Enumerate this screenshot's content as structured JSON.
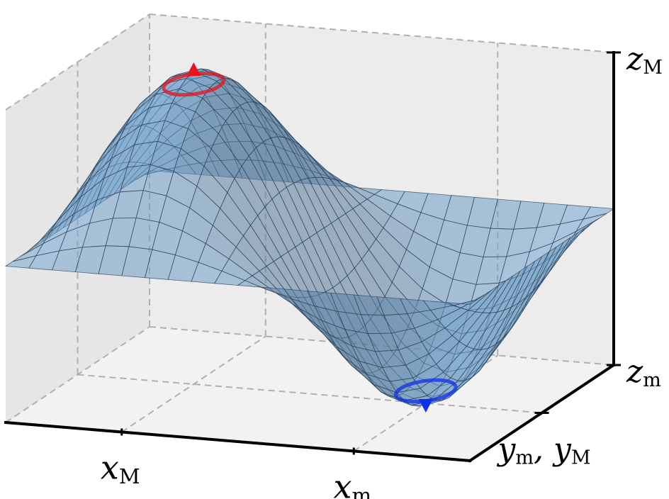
{
  "chart_data": {
    "type": "surface3d",
    "title": "",
    "xlabel": "",
    "ylabel": "",
    "zlabel": "",
    "x_ticks": [
      {
        "var": "x",
        "sub": "M",
        "value": 0.25
      },
      {
        "var": "x",
        "sub": "m",
        "value": 0.75
      }
    ],
    "y_ticks": [
      {
        "text": "y",
        "sub": "m",
        "sep": ", ",
        "text2": "y",
        "sub2": "M",
        "value": 0.5
      }
    ],
    "z_ticks": [
      {
        "var": "z",
        "sub": "M",
        "value": 1
      },
      {
        "var": "z",
        "sub": "m",
        "value": -1
      }
    ],
    "surface": {
      "function": "sin(2*pi*x) * sin(pi*y)",
      "x_range": [
        0,
        1
      ],
      "y_range": [
        0,
        1
      ],
      "z_range": [
        -1,
        1
      ],
      "grid": [
        21,
        21
      ],
      "face_color": "#6f9fc8",
      "edge_color": "#2b3f55"
    },
    "maximum": {
      "x": 0.25,
      "y": 0.5,
      "z": 1,
      "color": "#e8121b",
      "marker": "triangle-up"
    },
    "minimum": {
      "x": 0.75,
      "y": 0.5,
      "z": -1,
      "color": "#1030e8",
      "marker": "triangle-down"
    },
    "pane_grid": true,
    "grid_color": "#b0b0b0",
    "pane_color": "#f2f2f2"
  }
}
